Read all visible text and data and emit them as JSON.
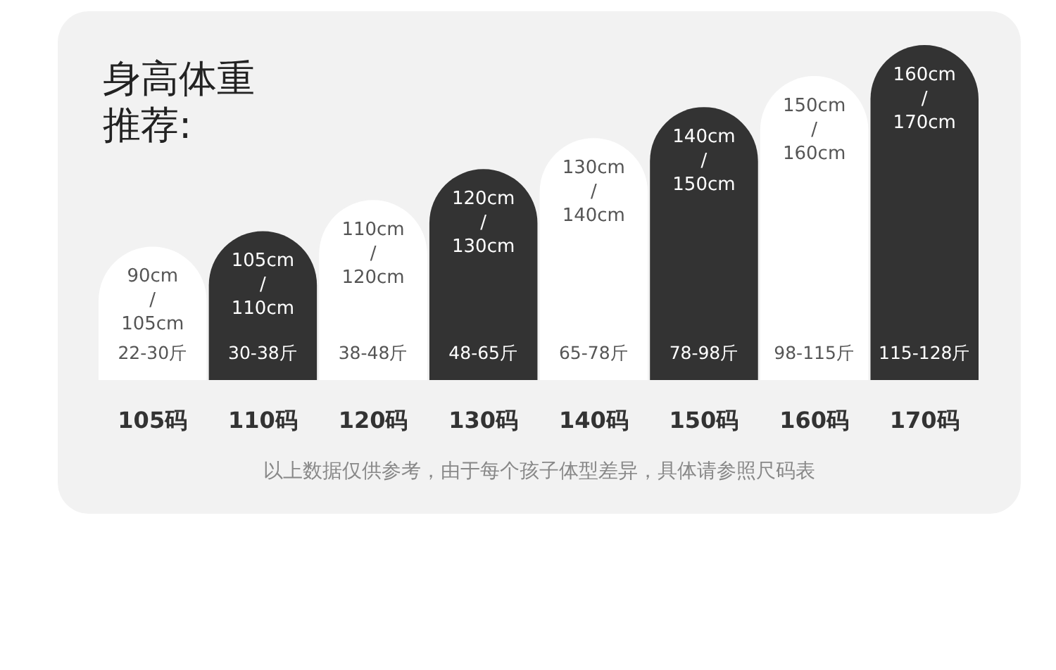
{
  "chart_data": {
    "type": "bar",
    "title": "身高体重推荐:",
    "categories": [
      "105码",
      "110码",
      "120码",
      "130码",
      "140码",
      "150码",
      "160码",
      "170码"
    ],
    "values": [
      105,
      110,
      120,
      130,
      140,
      150,
      160,
      170
    ],
    "ylim": [
      62,
      170
    ],
    "tick_labels": "x",
    "colors": [
      "#ffffff",
      "#333333",
      "#ffffff",
      "#333333",
      "#ffffff",
      "#333333",
      "#ffffff",
      "#333333"
    ],
    "value_labels": [
      "90cm / 105cm",
      "105cm / 110cm",
      "110cm / 120cm",
      "120cm / 130cm",
      "130cm / 140cm",
      "140cm / 150cm",
      "150cm / 160cm",
      "160cm / 170cm"
    ],
    "annotations": [
      "22-30斤",
      "30-38斤",
      "38-48斤",
      "48-65斤",
      "65-78斤",
      "78-98斤",
      "98-115斤",
      "115-128斤",
      "以上数据仅供参考，由于每个孩子体型差异，具体请参照尺码表"
    ]
  }
}
